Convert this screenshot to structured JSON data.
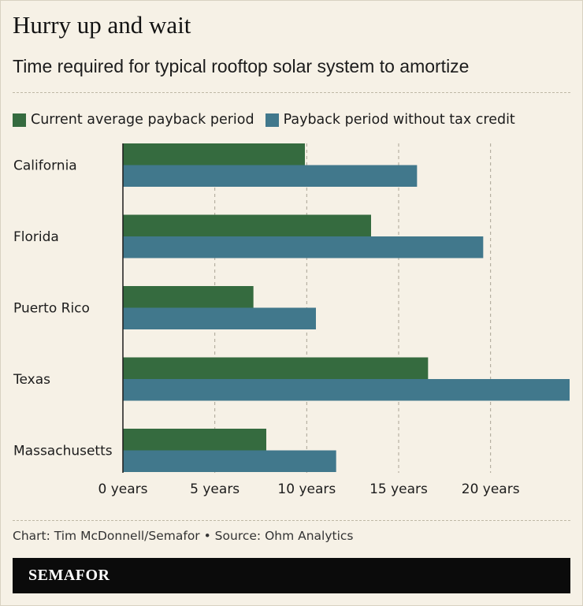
{
  "header": {
    "title": "Hurry up and wait",
    "subtitle": "Time required for typical rooftop solar system to amortize"
  },
  "legend": {
    "items": [
      {
        "label": "Current average payback period",
        "color": "#356b3f"
      },
      {
        "label": "Payback period without tax credit",
        "color": "#41788c"
      }
    ]
  },
  "footer": {
    "credit": "Chart: Tim McDonnell/Semafor • Source: Ohm Analytics",
    "brand": "SEMAFOR"
  },
  "chart_data": {
    "type": "bar",
    "orientation": "horizontal",
    "title": "Hurry up and wait",
    "subtitle": "Time required for typical rooftop solar system to amortize",
    "xlabel": "",
    "ylabel": "",
    "categories": [
      "California",
      "Florida",
      "Puerto Rico",
      "Texas",
      "Massachusetts"
    ],
    "series": [
      {
        "name": "Current average payback period",
        "color": "#356b3f",
        "values": [
          9.9,
          13.5,
          7.1,
          16.6,
          7.8
        ]
      },
      {
        "name": "Payback period without tax credit",
        "color": "#41788c",
        "values": [
          16.0,
          19.6,
          10.5,
          24.3,
          11.6
        ]
      }
    ],
    "xlim": [
      0,
      24.3
    ],
    "ticks": [
      0,
      5,
      10,
      15,
      20
    ],
    "tick_labels": [
      "0 years",
      "5 years",
      "10 years",
      "15 years",
      "20 years"
    ],
    "grid": "vertical dashed",
    "legend_position": "top-left"
  }
}
